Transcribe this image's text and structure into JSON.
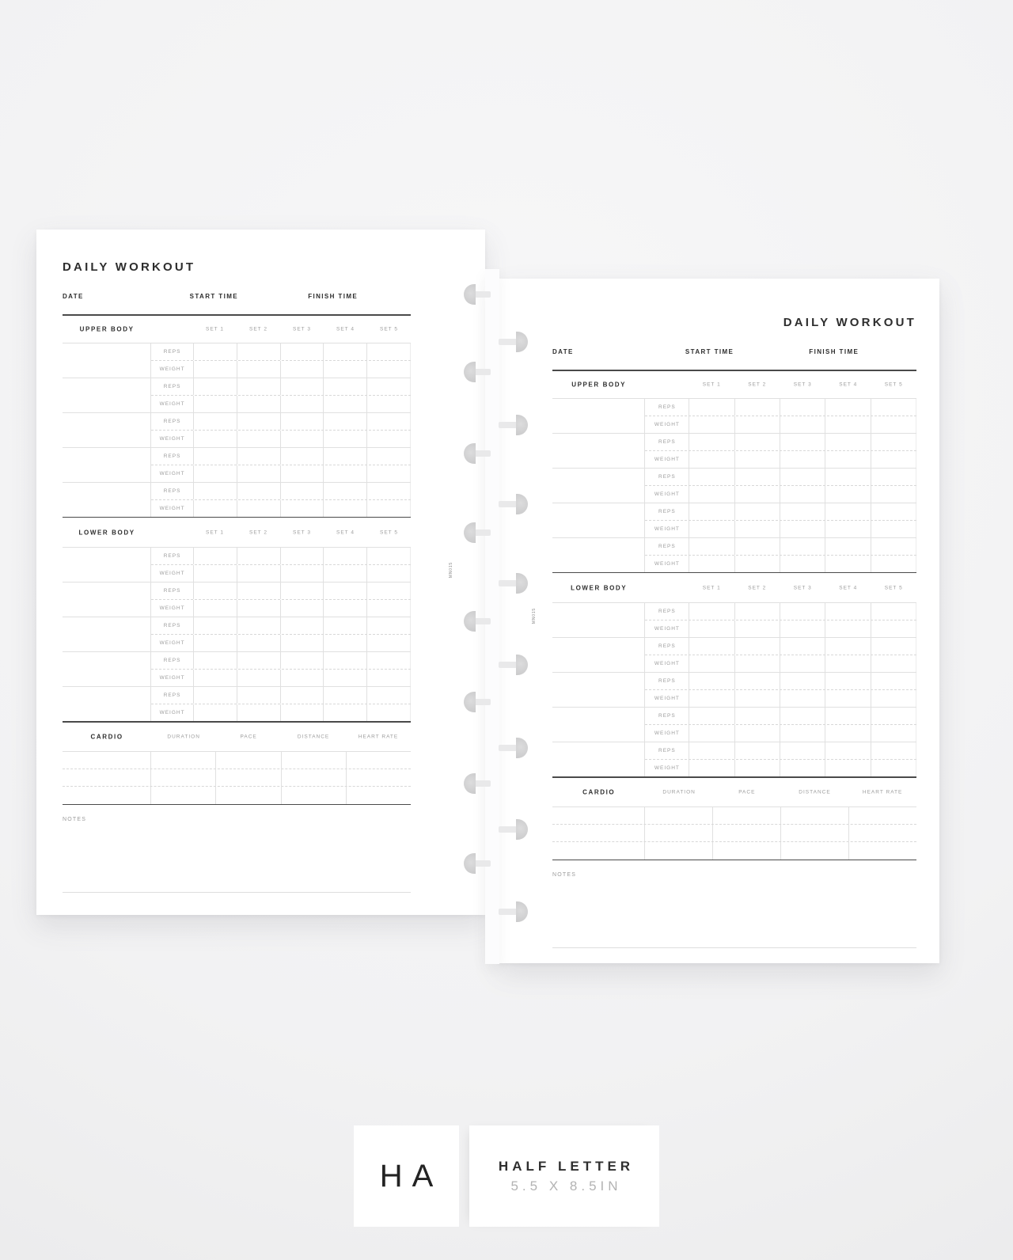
{
  "page": {
    "title": "DAILY WORKOUT",
    "meta": {
      "date": "DATE",
      "start": "START TIME",
      "finish": "FINISH TIME"
    },
    "sets": [
      "SET 1",
      "SET 2",
      "SET 3",
      "SET 4",
      "SET 5"
    ],
    "sections": [
      {
        "label": "UPPER BODY"
      },
      {
        "label": "LOWER BODY"
      }
    ],
    "exercises_per_section": 5,
    "exercise_row_labels": [
      "REPS",
      "WEIGHT"
    ],
    "cardio": {
      "label": "CARDIO",
      "columns": [
        "DURATION",
        "PACE",
        "DISTANCE",
        "HEART RATE"
      ],
      "rows": 3
    },
    "notes_label": "NOTES",
    "edge_code": "MN015"
  },
  "badges": {
    "code": "HA",
    "size_name": "HALF LETTER",
    "size_dims": "5.5 X 8.5IN"
  },
  "colors": {
    "ink": "#2d2d2d",
    "muted": "#9c9c9c",
    "rule_dark": "#4a4a4a",
    "line_light": "#e0e0e0",
    "page": "#ffffff"
  }
}
